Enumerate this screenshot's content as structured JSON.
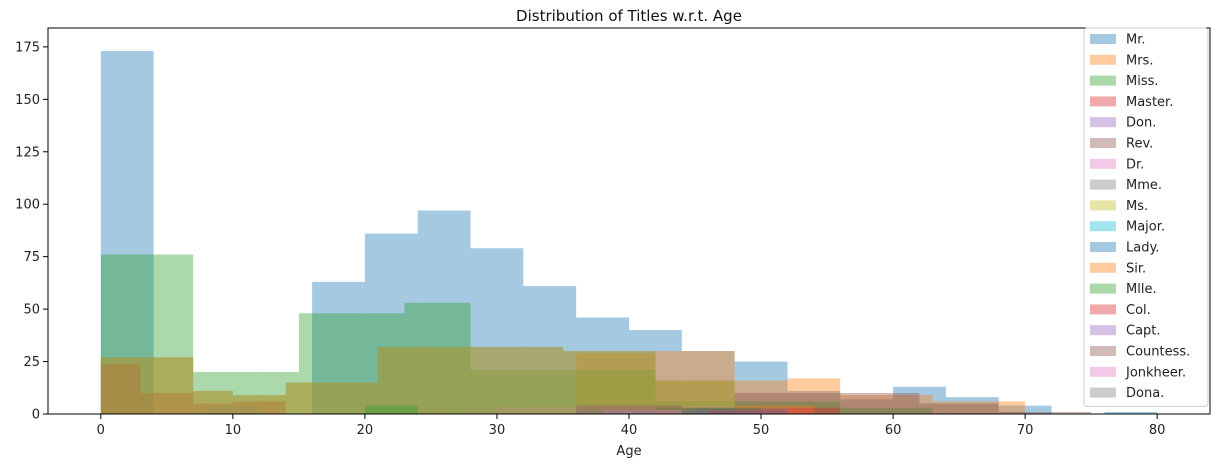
{
  "chart_data": {
    "type": "bar",
    "title": "Distribution of Titles w.r.t. Age",
    "xlabel": "Age",
    "ylabel": "",
    "xlim": [
      -4,
      84
    ],
    "ylim": [
      0,
      184
    ],
    "xticks": [
      0,
      10,
      20,
      30,
      40,
      50,
      60,
      70,
      80
    ],
    "yticks": [
      0,
      25,
      50,
      75,
      100,
      125,
      150,
      175
    ],
    "legend_position": "top-right",
    "grid": false,
    "series": [
      {
        "name": "Mr.",
        "color": "#1f77b4",
        "bins": [
          [
            0,
            4,
            173
          ],
          [
            16,
            20,
            63
          ],
          [
            20,
            24,
            86
          ],
          [
            24,
            28,
            97
          ],
          [
            28,
            32,
            79
          ],
          [
            32,
            36,
            61
          ],
          [
            36,
            40,
            46
          ],
          [
            40,
            44,
            40
          ],
          [
            44,
            48,
            30
          ],
          [
            48,
            52,
            25
          ],
          [
            52,
            56,
            11
          ],
          [
            56,
            60,
            7
          ],
          [
            60,
            64,
            13
          ],
          [
            64,
            68,
            8
          ],
          [
            68,
            72,
            4
          ],
          [
            76,
            80,
            1
          ]
        ]
      },
      {
        "name": "Mrs.",
        "color": "#ff7f0e",
        "bins": [
          [
            0,
            4,
            0
          ],
          [
            16,
            20,
            0
          ],
          [
            36,
            42,
            29
          ],
          [
            42,
            48,
            30
          ],
          [
            48,
            52,
            16
          ],
          [
            52,
            56,
            17
          ],
          [
            56,
            63,
            9
          ],
          [
            63,
            70,
            6
          ]
        ]
      },
      {
        "name": "Miss.",
        "color": "#2ca02c",
        "bins": [
          [
            0,
            4,
            76
          ],
          [
            4,
            7,
            76
          ],
          [
            7,
            12,
            20
          ],
          [
            12,
            15,
            20
          ],
          [
            15,
            20,
            48
          ],
          [
            20,
            23,
            48
          ],
          [
            23,
            28,
            53
          ],
          [
            28,
            35,
            21
          ],
          [
            35,
            42,
            21
          ],
          [
            42,
            49,
            6
          ],
          [
            49,
            56,
            6
          ],
          [
            56,
            63,
            3
          ]
        ]
      },
      {
        "name": "Master.",
        "color": "#d62728",
        "bins": [
          [
            0,
            3,
            24
          ],
          [
            3,
            7,
            10
          ],
          [
            7,
            10,
            5
          ],
          [
            10,
            14,
            6
          ]
        ]
      },
      {
        "name": "Don.",
        "color": "#9467bd",
        "bins": [
          [
            40,
            52,
            2
          ]
        ]
      },
      {
        "name": "Rev.",
        "color": "#8c564b",
        "bins": [
          [
            0,
            7,
            27
          ],
          [
            7,
            10,
            11
          ],
          [
            10,
            14,
            9
          ],
          [
            14,
            21,
            15
          ],
          [
            21,
            27,
            32
          ],
          [
            27,
            35,
            32
          ],
          [
            35,
            42,
            30
          ],
          [
            42,
            48,
            16
          ],
          [
            48,
            55,
            10
          ],
          [
            55,
            62,
            10
          ],
          [
            62,
            68,
            5
          ],
          [
            68,
            75,
            1
          ]
        ]
      },
      {
        "name": "Dr.",
        "color": "#e377c2",
        "bins": [
          [
            30,
            36,
            3
          ],
          [
            36,
            42,
            4
          ],
          [
            42,
            48,
            4
          ],
          [
            48,
            54,
            3
          ]
        ]
      },
      {
        "name": "Mme.",
        "color": "#7f7f7f",
        "bins": [
          [
            8,
            12,
            4
          ],
          [
            20,
            28,
            2
          ],
          [
            28,
            36,
            4
          ],
          [
            36,
            44,
            5
          ],
          [
            44,
            52,
            3
          ]
        ]
      },
      {
        "name": "Ms.",
        "color": "#bcbd22",
        "bins": [
          [
            0,
            7,
            27
          ],
          [
            7,
            10,
            11
          ],
          [
            10,
            14,
            9
          ],
          [
            14,
            21,
            15
          ],
          [
            21,
            27,
            32
          ],
          [
            27,
            35,
            32
          ],
          [
            35,
            42,
            30
          ],
          [
            42,
            48,
            16
          ]
        ]
      },
      {
        "name": "Major.",
        "color": "#17becf",
        "bins": [
          [
            44,
            52,
            2
          ]
        ]
      },
      {
        "name": "Lady.",
        "color": "#1f77b4",
        "bins": [
          [
            45,
            50,
            3
          ]
        ]
      },
      {
        "name": "Sir.",
        "color": "#ff7f0e",
        "bins": [
          [
            48,
            54,
            4
          ]
        ]
      },
      {
        "name": "Mlle.",
        "color": "#2ca02c",
        "bins": [
          [
            20,
            24,
            4
          ],
          [
            42,
            50,
            3
          ]
        ]
      },
      {
        "name": "Col.",
        "color": "#d62728",
        "bins": [
          [
            46,
            52,
            2
          ],
          [
            52,
            56,
            3
          ]
        ]
      },
      {
        "name": "Capt.",
        "color": "#9467bd",
        "bins": [
          [
            44,
            52,
            2
          ]
        ]
      },
      {
        "name": "Countess.",
        "color": "#8c564b",
        "bins": [
          [
            36,
            44,
            4
          ],
          [
            44,
            52,
            3
          ]
        ]
      },
      {
        "name": "Jonkheer.",
        "color": "#e377c2",
        "bins": [
          [
            38,
            44,
            2
          ]
        ]
      },
      {
        "name": "Dona.",
        "color": "#7f7f7f",
        "bins": [
          [
            36,
            42,
            2
          ]
        ]
      }
    ]
  }
}
